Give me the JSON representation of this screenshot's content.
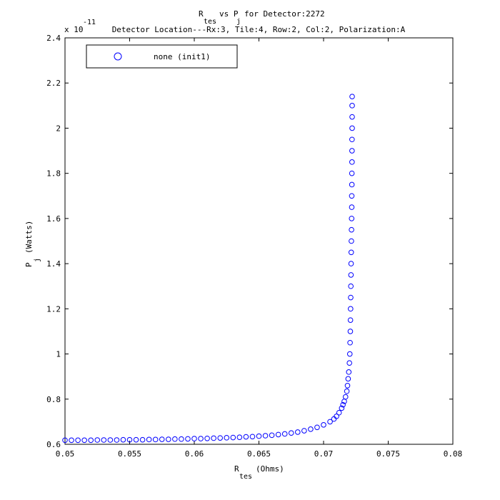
{
  "chart_data": {
    "type": "scatter",
    "title": {
      "line1": {
        "r": "R",
        "r_sub": "tes",
        "vs": "vs P",
        "p_sub": "j",
        "rest": "for Detector:2272"
      },
      "line2": "Detector Location---Rx:3, Tile:4, Row:2, Col:2, Polarization:A"
    },
    "xlabel": {
      "main": "R",
      "sub": "tes",
      "unit": "(Ohms)"
    },
    "ylabel": {
      "main": "P",
      "sub": "j",
      "unit": "(Watts)"
    },
    "y_exponent": {
      "base": "x 10",
      "power": "-11"
    },
    "xlim": [
      0.05,
      0.08
    ],
    "ylim": [
      0.6,
      2.4
    ],
    "xticks": [
      "0.05",
      "0.055",
      "0.06",
      "0.065",
      "0.07",
      "0.075",
      "0.08"
    ],
    "yticks": [
      "0.6",
      "0.8",
      "1",
      "1.2",
      "1.4",
      "1.6",
      "1.8",
      "2",
      "2.2",
      "2.4"
    ],
    "grid": false,
    "legend_position": "top-left",
    "marker_color": "#0000ff",
    "marker": "circle-open",
    "series": [
      {
        "name": "none (init1)",
        "points": [
          [
            0.05,
            0.618
          ],
          [
            0.0505,
            0.618
          ],
          [
            0.051,
            0.618
          ],
          [
            0.0515,
            0.618
          ],
          [
            0.052,
            0.618
          ],
          [
            0.0525,
            0.619
          ],
          [
            0.053,
            0.619
          ],
          [
            0.0535,
            0.619
          ],
          [
            0.054,
            0.619
          ],
          [
            0.0545,
            0.62
          ],
          [
            0.055,
            0.62
          ],
          [
            0.0555,
            0.62
          ],
          [
            0.056,
            0.62
          ],
          [
            0.0565,
            0.621
          ],
          [
            0.057,
            0.621
          ],
          [
            0.0575,
            0.622
          ],
          [
            0.058,
            0.622
          ],
          [
            0.0585,
            0.623
          ],
          [
            0.059,
            0.623
          ],
          [
            0.0595,
            0.624
          ],
          [
            0.06,
            0.625
          ],
          [
            0.0605,
            0.625
          ],
          [
            0.061,
            0.626
          ],
          [
            0.0615,
            0.627
          ],
          [
            0.062,
            0.628
          ],
          [
            0.0625,
            0.629
          ],
          [
            0.063,
            0.63
          ],
          [
            0.0635,
            0.631
          ],
          [
            0.064,
            0.633
          ],
          [
            0.0645,
            0.634
          ],
          [
            0.065,
            0.636
          ],
          [
            0.0655,
            0.638
          ],
          [
            0.066,
            0.64
          ],
          [
            0.0665,
            0.643
          ],
          [
            0.067,
            0.646
          ],
          [
            0.0675,
            0.65
          ],
          [
            0.068,
            0.654
          ],
          [
            0.0685,
            0.66
          ],
          [
            0.069,
            0.667
          ],
          [
            0.0695,
            0.675
          ],
          [
            0.07,
            0.686
          ],
          [
            0.0705,
            0.7
          ],
          [
            0.0708,
            0.712
          ],
          [
            0.071,
            0.724
          ],
          [
            0.0712,
            0.74
          ],
          [
            0.0714,
            0.76
          ],
          [
            0.0715,
            0.775
          ],
          [
            0.0716,
            0.79
          ],
          [
            0.0717,
            0.81
          ],
          [
            0.0718,
            0.835
          ],
          [
            0.07185,
            0.86
          ],
          [
            0.0719,
            0.89
          ],
          [
            0.07195,
            0.92
          ],
          [
            0.072,
            0.96
          ],
          [
            0.07203,
            1.0
          ],
          [
            0.07205,
            1.05
          ],
          [
            0.07207,
            1.1
          ],
          [
            0.07208,
            1.15
          ],
          [
            0.07209,
            1.2
          ],
          [
            0.0721,
            1.25
          ],
          [
            0.07211,
            1.3
          ],
          [
            0.07212,
            1.35
          ],
          [
            0.07213,
            1.4
          ],
          [
            0.07214,
            1.45
          ],
          [
            0.07215,
            1.5
          ],
          [
            0.07216,
            1.55
          ],
          [
            0.07217,
            1.6
          ],
          [
            0.07218,
            1.65
          ],
          [
            0.07218,
            1.7
          ],
          [
            0.07219,
            1.75
          ],
          [
            0.07219,
            1.8
          ],
          [
            0.0722,
            1.85
          ],
          [
            0.0722,
            1.9
          ],
          [
            0.0722,
            1.95
          ],
          [
            0.07221,
            2.0
          ],
          [
            0.07221,
            2.05
          ],
          [
            0.07221,
            2.1
          ],
          [
            0.07221,
            2.14
          ]
        ]
      }
    ]
  }
}
